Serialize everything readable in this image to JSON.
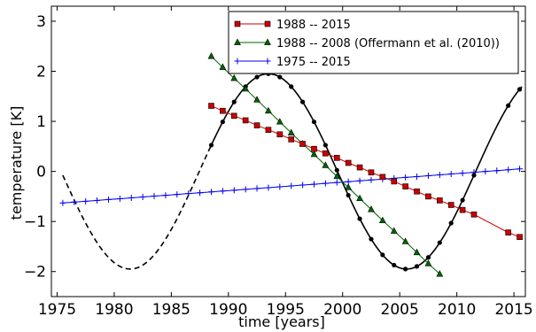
{
  "chart_data": {
    "type": "line",
    "xlabel": "time [years]",
    "ylabel": "temperature [K]",
    "xlim": [
      1974.5,
      2016
    ],
    "ylim": [
      -2.5,
      3.3
    ],
    "x_ticks": [
      1975,
      1980,
      1985,
      1990,
      1995,
      2000,
      2005,
      2010,
      2015
    ],
    "y_ticks": [
      -2,
      -1,
      0,
      1,
      2,
      3
    ],
    "y_tick_labels": [
      "−2",
      "−1",
      "0",
      "1",
      "2",
      "3"
    ],
    "grid": false,
    "legend_position": "top-right",
    "series": [
      {
        "name": "1988 -- 2015",
        "color": "#cc0000",
        "marker": "square",
        "x": [
          1988.5,
          1989.5,
          1990.5,
          1991.5,
          1992.5,
          1993.5,
          1994.5,
          1995.5,
          1996.5,
          1997.5,
          1998.5,
          1999.5,
          2000.5,
          2001.5,
          2002.5,
          2003.5,
          2004.5,
          2005.5,
          2006.5,
          2007.5,
          2008.5,
          2009.5,
          2010.5,
          2011.5,
          2014.5,
          2015.5
        ],
        "y": [
          1.31,
          1.21,
          1.11,
          1.02,
          0.92,
          0.83,
          0.74,
          0.64,
          0.55,
          0.45,
          0.36,
          0.27,
          0.17,
          0.08,
          -0.02,
          -0.11,
          -0.2,
          -0.3,
          -0.4,
          -0.5,
          -0.58,
          -0.67,
          -0.77,
          -0.86,
          -1.22,
          -1.31
        ]
      },
      {
        "name": "1988 -- 2008 (Offermann et al. (2010))",
        "color": "#006600",
        "marker": "triangle",
        "x": [
          1988.5,
          1989.5,
          1990.5,
          1991.5,
          1992.5,
          1993.5,
          1994.5,
          1995.5,
          1996.5,
          1997.5,
          1998.5,
          1999.5,
          2000.5,
          2001.5,
          2002.5,
          2003.5,
          2004.5,
          2005.5,
          2006.5,
          2007.5,
          2008.5
        ],
        "y": [
          2.3,
          2.08,
          1.86,
          1.65,
          1.43,
          1.21,
          0.99,
          0.77,
          0.55,
          0.34,
          0.12,
          -0.1,
          -0.32,
          -0.54,
          -0.76,
          -0.98,
          -1.19,
          -1.4,
          -1.62,
          -1.84,
          -2.05
        ]
      },
      {
        "name": "1975 -- 2015",
        "color": "#0000ee",
        "marker": "plus",
        "x_start": 1975.5,
        "x_step": 1,
        "y_start": -0.63,
        "y_end": 0.05,
        "count": 41
      },
      {
        "name": "",
        "color": "#000000",
        "style": "fit",
        "fit_type": "sinusoid",
        "amplitude": 1.95,
        "period_years": 24.2,
        "peak_year": 1993.5,
        "dashed_range": [
          1975.5,
          1988.5
        ],
        "solid_range": [
          1988.5,
          2015.7
        ],
        "dashed_ranges_extra": [
          [
            2013.3,
            2014.3
          ]
        ],
        "marker_years": [
          1988.5,
          1989.5,
          1990.5,
          1991.5,
          1992.5,
          1993.5,
          1994.5,
          1995.5,
          1996.5,
          1997.5,
          1998.5,
          1999.5,
          2000.5,
          2001.5,
          2002.5,
          2003.5,
          2004.5,
          2005.5,
          2006.5,
          2007.5,
          2008.5,
          2009.5,
          2010.5,
          2011.5,
          2014.5,
          2015.5
        ]
      }
    ]
  }
}
